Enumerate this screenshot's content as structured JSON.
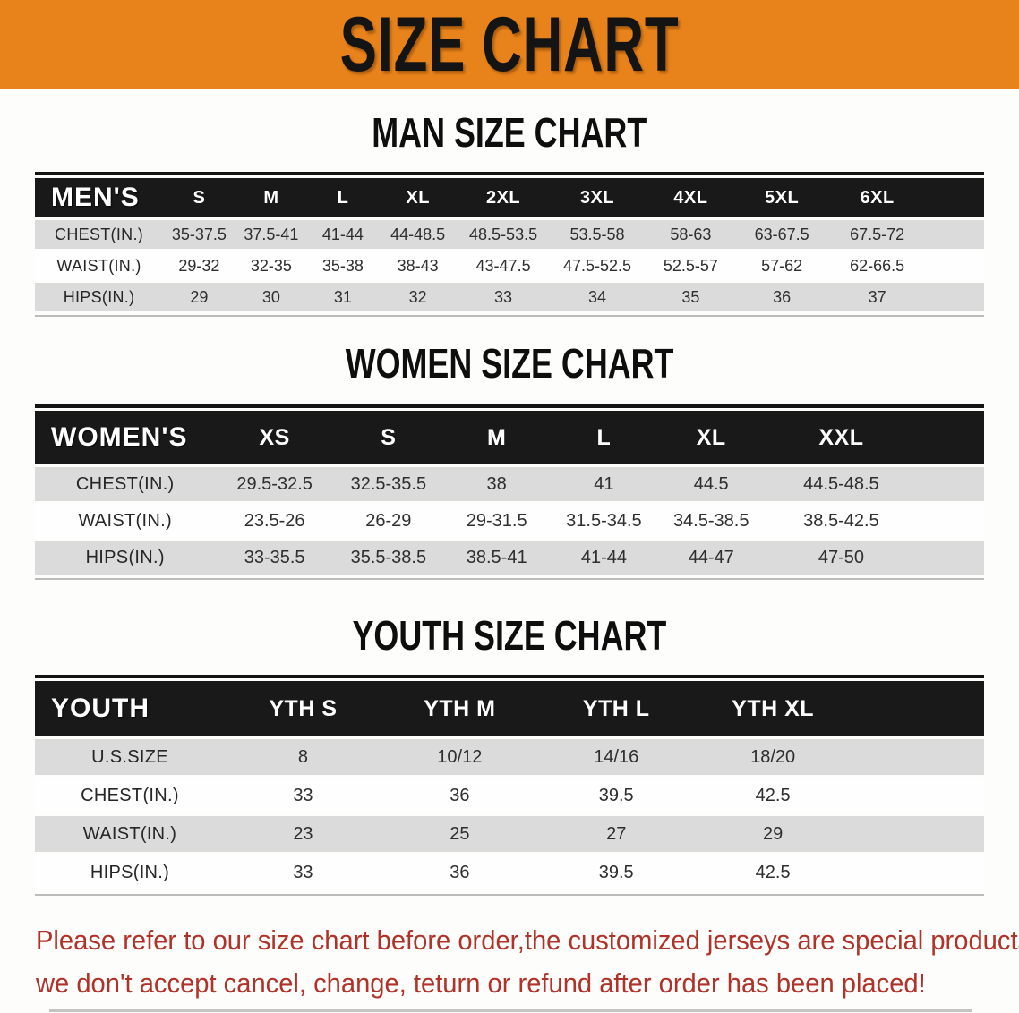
{
  "banner": {
    "title": "SIZE CHART"
  },
  "colors": {
    "banner_bg": "#E8821A",
    "header_bar": "#191919",
    "shaded_row": "#DBDBDB",
    "footer_text": "#B03228"
  },
  "sections": [
    {
      "heading": "MAN SIZE CHART",
      "table": {
        "id": "mens",
        "header": [
          "MEN'S",
          "S",
          "M",
          "L",
          "XL",
          "2XL",
          "3XL",
          "4XL",
          "5XL",
          "6XL"
        ],
        "rows": [
          {
            "label": "CHEST(IN.)",
            "values": [
              "35-37.5",
              "37.5-41",
              "41-44",
              "44-48.5",
              "48.5-53.5",
              "53.5-58",
              "58-63",
              "63-67.5",
              "67.5-72"
            ]
          },
          {
            "label": "WAIST(IN.)",
            "values": [
              "29-32",
              "32-35",
              "35-38",
              "38-43",
              "43-47.5",
              "47.5-52.5",
              "52.5-57",
              "57-62",
              "62-66.5"
            ]
          },
          {
            "label": "HIPS(IN.)",
            "values": [
              "29",
              "30",
              "31",
              "32",
              "33",
              "34",
              "35",
              "36",
              "37"
            ]
          }
        ]
      }
    },
    {
      "heading": "WOMEN SIZE CHART",
      "table": {
        "id": "womens",
        "header": [
          "WOMEN'S",
          "XS",
          "S",
          "M",
          "L",
          "XL",
          "XXL"
        ],
        "rows": [
          {
            "label": "CHEST(IN.)",
            "values": [
              "29.5-32.5",
              "32.5-35.5",
              "38",
              "41",
              "44.5",
              "44.5-48.5"
            ]
          },
          {
            "label": "WAIST(IN.)",
            "values": [
              "23.5-26",
              "26-29",
              "29-31.5",
              "31.5-34.5",
              "34.5-38.5",
              "38.5-42.5"
            ]
          },
          {
            "label": "HIPS(IN.)",
            "values": [
              "33-35.5",
              "35.5-38.5",
              "38.5-41",
              "41-44",
              "44-47",
              "47-50"
            ]
          }
        ]
      }
    },
    {
      "heading": "YOUTH SIZE CHART",
      "table": {
        "id": "youth",
        "header": [
          "YOUTH",
          "YTH S",
          "YTH M",
          "YTH L",
          "YTH XL"
        ],
        "rows": [
          {
            "label": "U.S.SIZE",
            "values": [
              "8",
              "10/12",
              "14/16",
              "18/20"
            ]
          },
          {
            "label": "CHEST(IN.)",
            "values": [
              "33",
              "36",
              "39.5",
              "42.5"
            ]
          },
          {
            "label": "WAIST(IN.)",
            "values": [
              "23",
              "25",
              "27",
              "29"
            ]
          },
          {
            "label": "HIPS(IN.)",
            "values": [
              "33",
              "36",
              "39.5",
              "42.5"
            ]
          }
        ]
      }
    }
  ],
  "footer": {
    "lines": [
      "Please refer to our size chart before order,the customized jerseys are special products,",
      "we don't accept cancel, change, teturn or refund after order has been placed!"
    ]
  }
}
